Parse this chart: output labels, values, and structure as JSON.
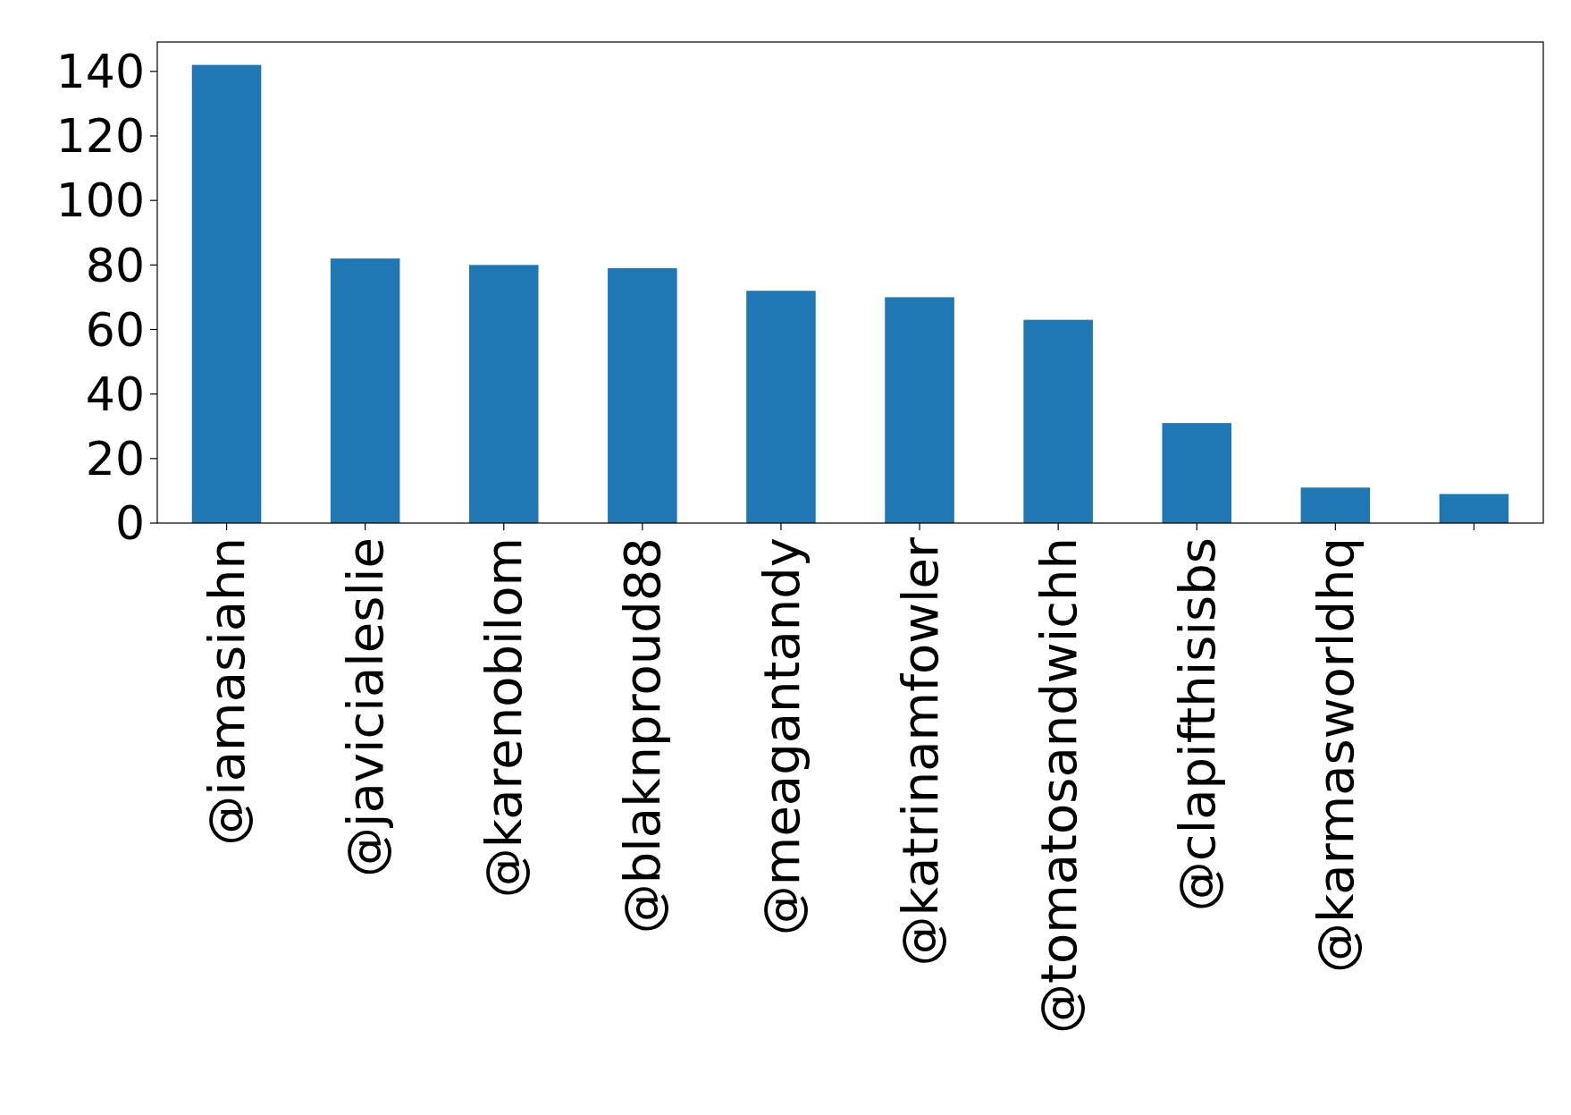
{
  "chart_data": {
    "type": "bar",
    "categories": [
      "@iamasiahn",
      "@javicialeslie",
      "@karenobilom",
      "@blaknproud88",
      "@meagantandy",
      "@katrinamfowler",
      "@tomatosandwichh",
      "@clapifthisisbs",
      "@karmasworldhq",
      null
    ],
    "values": [
      142,
      82,
      80,
      79,
      72,
      70,
      63,
      31,
      11,
      9
    ],
    "color": "#1f77b4",
    "ylim": [
      0,
      149.1
    ],
    "yticks": [
      0,
      20,
      40,
      60,
      80,
      100,
      120,
      140
    ],
    "grid": false
  }
}
